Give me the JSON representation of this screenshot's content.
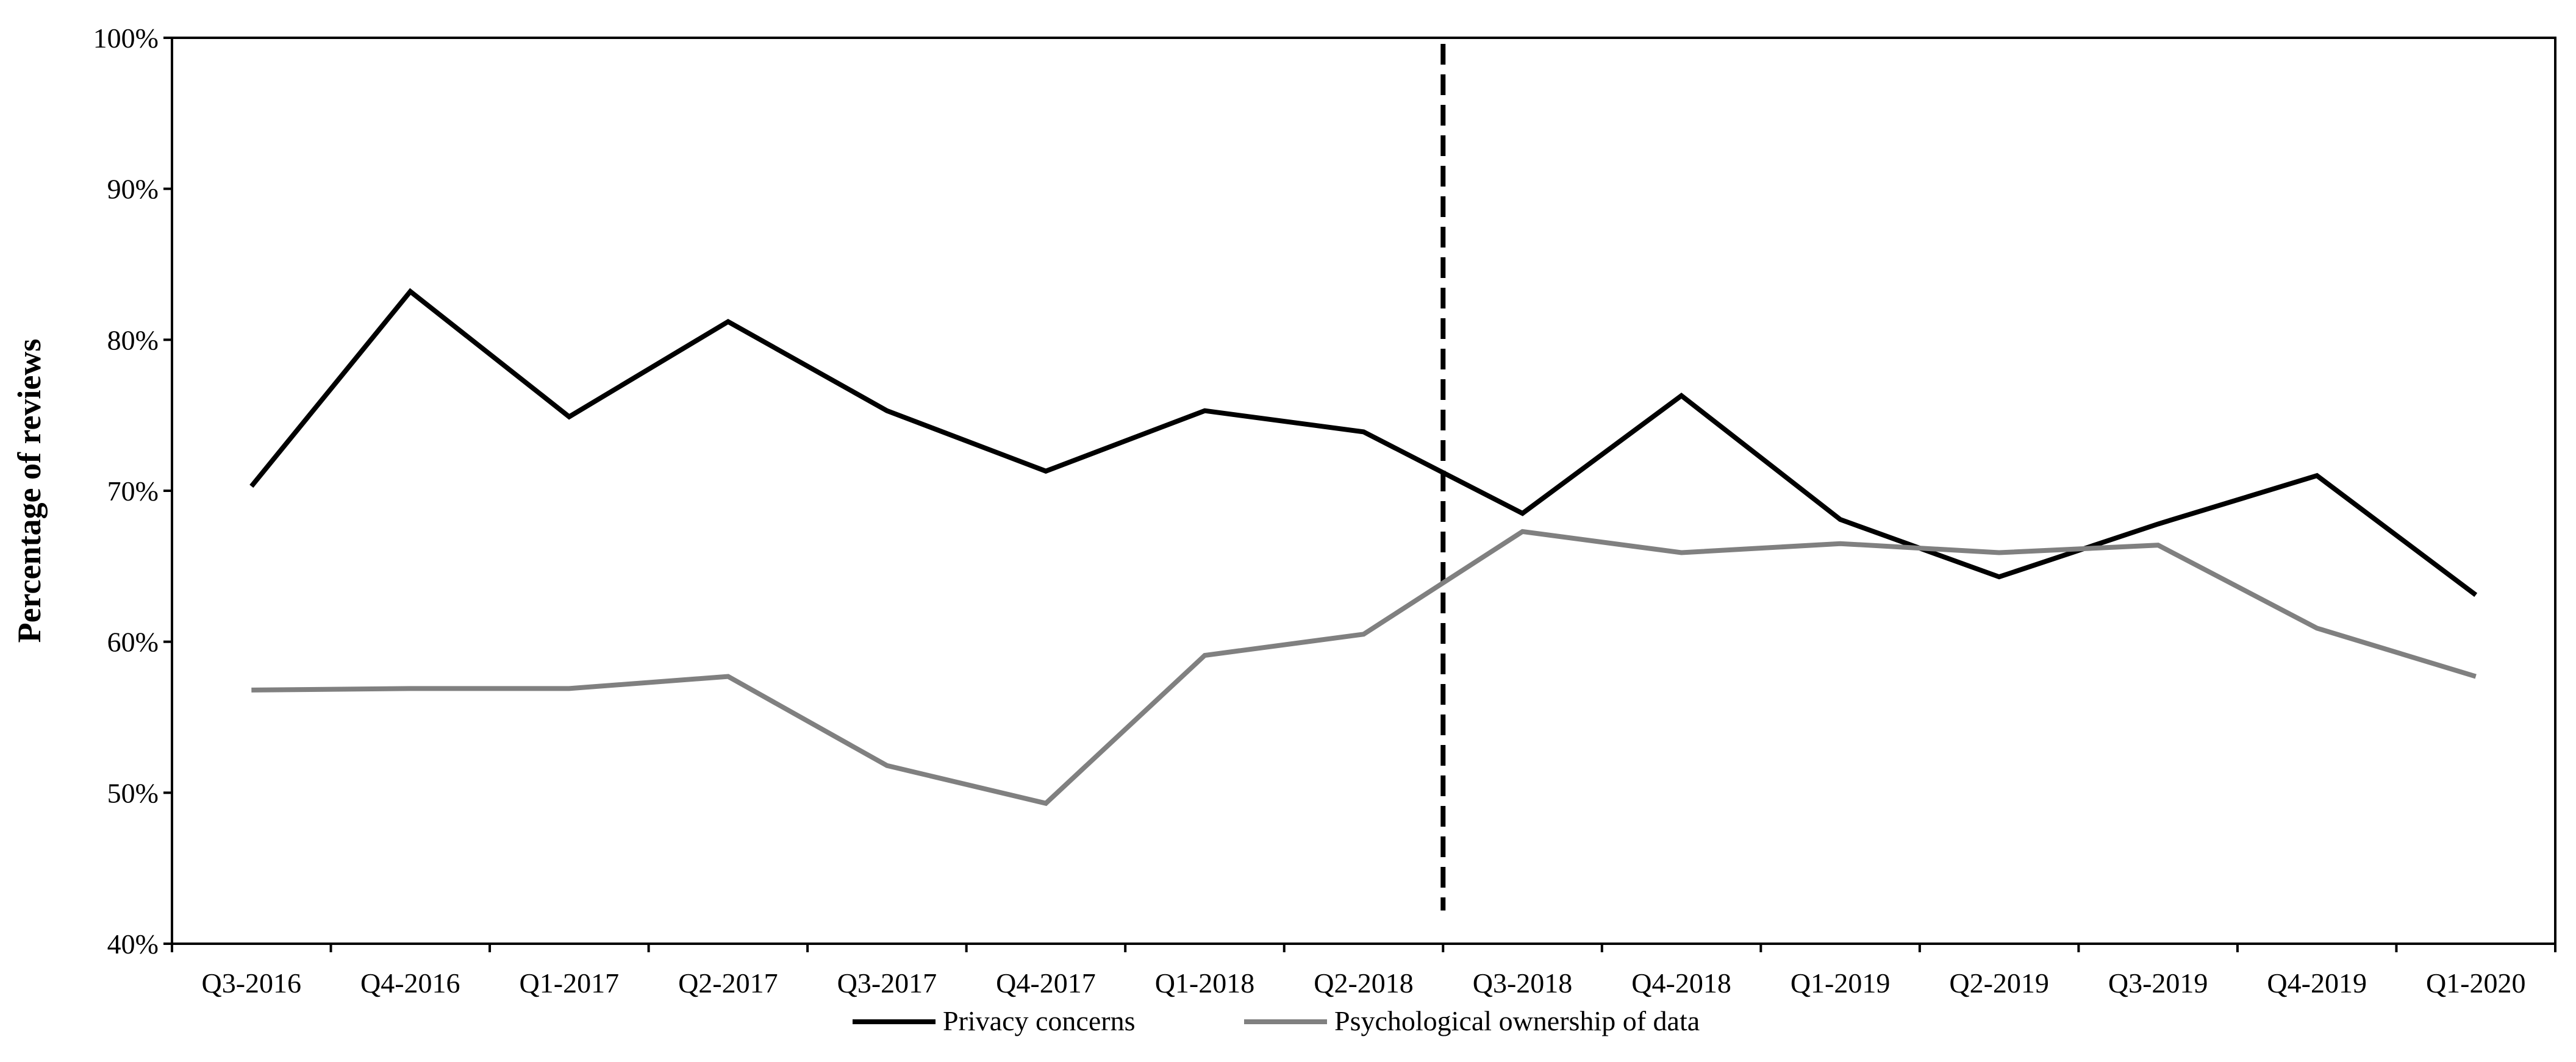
{
  "chart_data": {
    "type": "line",
    "categories": [
      "Q3-2016",
      "Q4-2016",
      "Q1-2017",
      "Q2-2017",
      "Q3-2017",
      "Q4-2017",
      "Q1-2018",
      "Q2-2018",
      "Q3-2018",
      "Q4-2018",
      "Q1-2019",
      "Q2-2019",
      "Q3-2019",
      "Q4-2019",
      "Q1-2020"
    ],
    "series": [
      {
        "name": "Privacy concerns",
        "color": "#000000",
        "values": [
          70.3,
          83.2,
          74.9,
          81.2,
          75.3,
          71.3,
          75.3,
          73.9,
          68.5,
          76.3,
          68.1,
          64.3,
          67.8,
          71.0,
          63.1
        ]
      },
      {
        "name": "Psychological ownership of data",
        "color": "#808080",
        "values": [
          56.8,
          56.9,
          56.9,
          57.7,
          51.8,
          49.3,
          59.1,
          60.5,
          67.3,
          65.9,
          66.5,
          65.9,
          66.4,
          60.9,
          57.7
        ]
      }
    ],
    "ylabel": "Percentage of reviews",
    "xlabel": "",
    "ylim": [
      40,
      100
    ],
    "yticks": [
      40,
      50,
      60,
      70,
      80,
      90,
      100
    ],
    "ytick_labels": [
      "40%",
      "50%",
      "60%",
      "70%",
      "80%",
      "90%",
      "100%"
    ],
    "grid": false,
    "legend_position": "bottom",
    "event_line": {
      "after_category": "Q2-2018",
      "before_category": "Q3-2018",
      "style": "dashed",
      "color": "#000000"
    }
  }
}
